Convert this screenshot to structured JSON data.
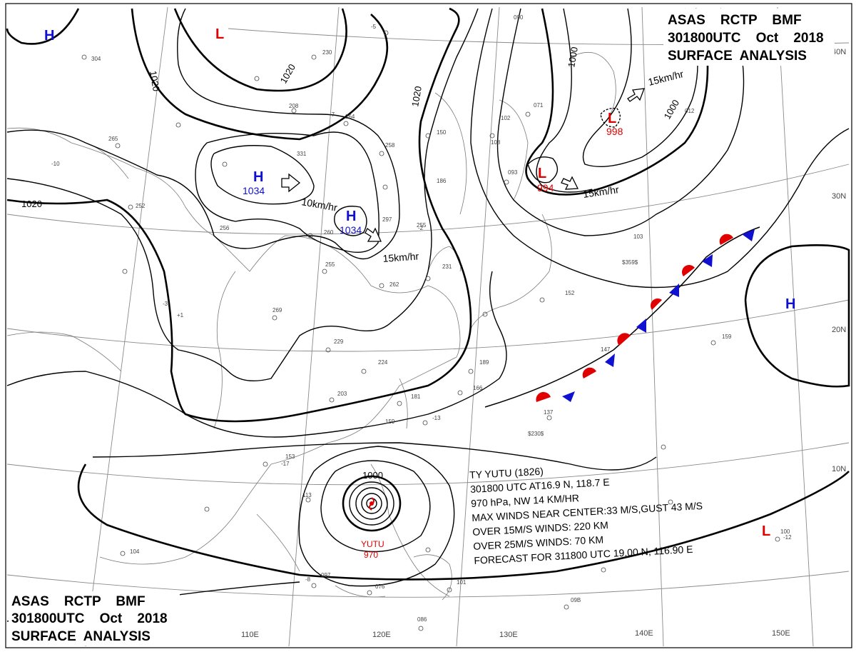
{
  "header_top": {
    "line1": "ASAS    RCTP    BMF",
    "line2": "301800UTC    Oct    2018",
    "line3": "SURFACE  ANALYSIS"
  },
  "header_bottom": {
    "line1": "ASAS    RCTP    BMF",
    "line2": "301800UTC    Oct    2018",
    "line3": "SURFACE  ANALYSIS"
  },
  "longitudes": [
    "110E",
    "120E",
    "130E",
    "140E",
    "150E"
  ],
  "latitudes": [
    "40N",
    "30N",
    "20N",
    "10N"
  ],
  "isobar_labels": [
    "1020",
    "1020",
    "1020",
    "1020",
    "1000",
    "1000",
    "1000"
  ],
  "pressure_centers": [
    {
      "type": "H",
      "value": ""
    },
    {
      "type": "L",
      "value": ""
    },
    {
      "type": "H",
      "value": "1034"
    },
    {
      "type": "H",
      "value": "1034"
    },
    {
      "type": "L",
      "value": "998"
    },
    {
      "type": "L",
      "value": "994"
    },
    {
      "type": "H",
      "value": ""
    },
    {
      "type": "L",
      "value": ""
    }
  ],
  "motion_labels": [
    "10km/hr",
    "15km/hr",
    "15km/hr",
    "15km/hr"
  ],
  "typhoon": {
    "name": "YUTU",
    "pressure": "970",
    "isobar": "1000",
    "info": [
      "TY  YUTU  (1826)",
      "301800 UTC  AT16.9 N, 118.7 E",
      "970 hPa, NW  14 KM/HR",
      "MAX WINDS NEAR CENTER:33 M/S,GUST 43 M/S",
      "OVER 15M/S WINDS: 220 KM",
      "OVER 25M/S WINDS: 70 KM",
      "FORECAST FOR 311800 UTC 19.00 N, 116.90 E"
    ]
  },
  "station_labels": [
    "230",
    "208",
    "264",
    "331",
    "258",
    "150",
    "186",
    "297",
    "255",
    "260",
    "255",
    "262",
    "231",
    "269",
    "229",
    "224",
    "203",
    "181",
    "166",
    "189",
    "153",
    "113",
    "159",
    "147",
    "137",
    "$230$",
    "$359$",
    "103",
    "152",
    "159",
    "097",
    "076",
    "086",
    "101",
    "104",
    "09B",
    "100",
    "012",
    "071",
    "102",
    "108",
    "093",
    "090",
    "265",
    "252",
    "256",
    "304",
    "-10",
    "-7",
    "-3",
    "+1",
    "-5",
    "-2",
    "-8",
    "-13",
    "-17",
    "-12"
  ],
  "colors": {
    "high": "#1010d0",
    "low": "#e00000",
    "front_warm": "#e00000",
    "front_cold": "#1010d0"
  }
}
